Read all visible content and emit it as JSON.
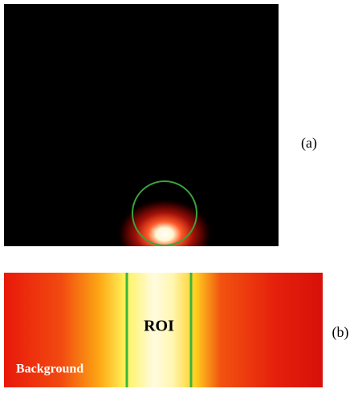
{
  "panels": [
    {
      "label": "(a)"
    },
    {
      "label": "(b)",
      "annotations": {
        "roi": "ROI",
        "background": "Background"
      }
    }
  ]
}
